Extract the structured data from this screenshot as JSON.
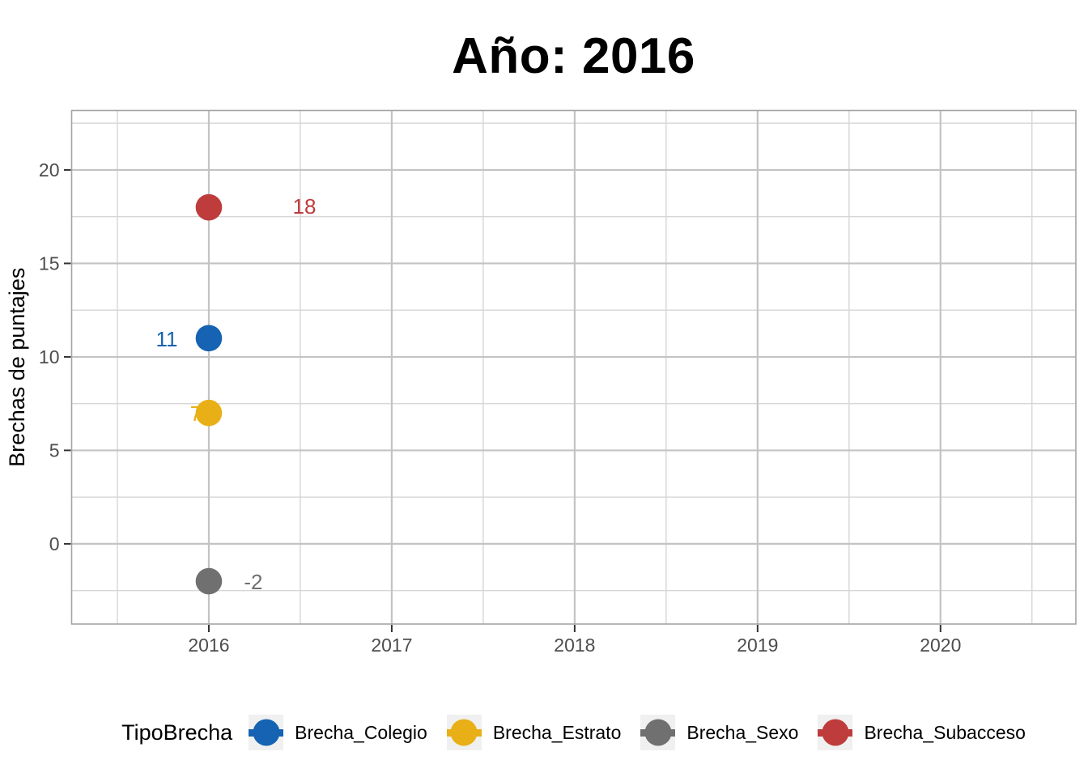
{
  "title": "Año: 2016",
  "chart_data": {
    "type": "scatter",
    "title": "Año: 2016",
    "xlabel": "",
    "ylabel": "Brechas de puntajes",
    "xlim": [
      2015.25,
      2020.74
    ],
    "ylim": [
      -4.29,
      23.18
    ],
    "x_major_ticks": [
      2016,
      2017,
      2018,
      2019,
      2020
    ],
    "x_tick_labels": [
      "2016",
      "2017",
      "2018",
      "2019",
      "2020"
    ],
    "x_minor_ticks": [
      2015.5,
      2016.5,
      2017.5,
      2018.5,
      2019.5,
      2020.5
    ],
    "y_major_ticks": [
      0,
      5,
      10,
      15,
      20
    ],
    "y_tick_labels": [
      "0",
      "5",
      "10",
      "15",
      "20"
    ],
    "y_minor_ticks": [
      -2.5,
      2.5,
      7.5,
      12.5,
      17.5,
      22.5
    ],
    "grid": true,
    "legend_position": "bottom",
    "series": [
      {
        "name": "Brecha_Colegio",
        "color": "#1563B2",
        "x": [
          2016
        ],
        "y": [
          11
        ],
        "label": "11",
        "label_offset": [
          -52,
          1
        ],
        "label_behind": false
      },
      {
        "name": "Brecha_Estrato",
        "color": "#E8B016",
        "x": [
          2016
        ],
        "y": [
          7
        ],
        "label": "7",
        "label_offset": [
          -16,
          1
        ],
        "label_behind": true
      },
      {
        "name": "Brecha_Sexo",
        "color": "#707070",
        "x": [
          2016
        ],
        "y": [
          -2
        ],
        "label": "-2",
        "label_offset": [
          55,
          1
        ],
        "label_behind": false
      },
      {
        "name": "Brecha_Subacceso",
        "color": "#BE3C3C",
        "x": [
          2016
        ],
        "y": [
          18
        ],
        "label": "18",
        "label_offset": [
          118,
          -1
        ],
        "label_behind": false
      }
    ]
  },
  "legend": {
    "title": "TipoBrecha"
  },
  "style_colors": {
    "grid_major": "#c3c3c3",
    "grid_minor": "#d6d6d6",
    "panel_border": "#a3a3a3",
    "tick_mark": "#333333",
    "tick_label": "#4d4d4d",
    "legend_key_bg": "#F0F0F0"
  }
}
